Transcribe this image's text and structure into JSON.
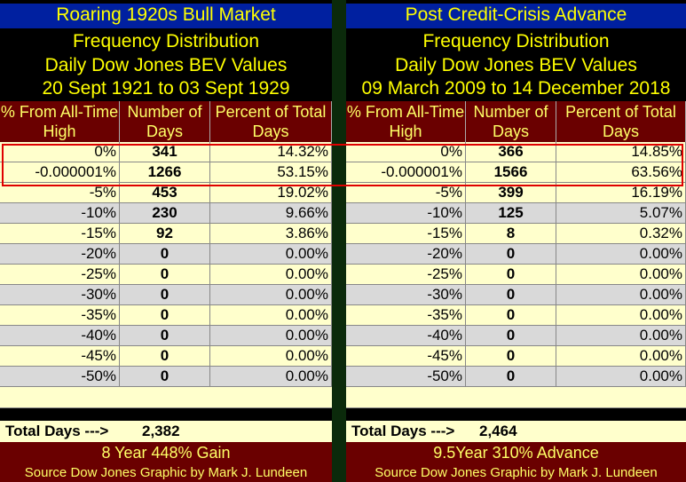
{
  "left": {
    "title": "Roaring 1920s Bull Market",
    "subtitle1": "Frequency Distribution",
    "subtitle2": "Daily Dow Jones BEV Values",
    "period": "20 Sept 1921 to 03 Sept 1929",
    "headers": [
      "% From All-Time High",
      "Number of Days",
      "Percent of Total Days"
    ],
    "rows": [
      [
        "0%",
        "341",
        "14.32%"
      ],
      [
        "-0.000001%",
        "1266",
        "53.15%"
      ],
      [
        "-5%",
        "453",
        "19.02%"
      ],
      [
        "-10%",
        "230",
        "9.66%"
      ],
      [
        "-15%",
        "92",
        "3.86%"
      ],
      [
        "-20%",
        "0",
        "0.00%"
      ],
      [
        "-25%",
        "0",
        "0.00%"
      ],
      [
        "-30%",
        "0",
        "0.00%"
      ],
      [
        "-35%",
        "0",
        "0.00%"
      ],
      [
        "-40%",
        "0",
        "0.00%"
      ],
      [
        "-45%",
        "0",
        "0.00%"
      ],
      [
        "-50%",
        "0",
        "0.00%"
      ]
    ],
    "total_label": "Total Days --->",
    "total_value": "2,382",
    "gain": "8 Year 448% Gain",
    "source": "Source Dow Jones   Graphic by Mark J. Lundeen"
  },
  "right": {
    "title": "Post Credit-Crisis Advance",
    "subtitle1": "Frequency Distribution",
    "subtitle2": "Daily Dow Jones BEV Values",
    "period": "09 March 2009 to 14 December 2018",
    "headers": [
      "% From All-Time High",
      "Number of Days",
      "Percent of Total Days"
    ],
    "rows": [
      [
        "0%",
        "366",
        "14.85%"
      ],
      [
        "-0.000001%",
        "1566",
        "63.56%"
      ],
      [
        "-5%",
        "399",
        "16.19%"
      ],
      [
        "-10%",
        "125",
        "5.07%"
      ],
      [
        "-15%",
        "8",
        "0.32%"
      ],
      [
        "-20%",
        "0",
        "0.00%"
      ],
      [
        "-25%",
        "0",
        "0.00%"
      ],
      [
        "-30%",
        "0",
        "0.00%"
      ],
      [
        "-35%",
        "0",
        "0.00%"
      ],
      [
        "-40%",
        "0",
        "0.00%"
      ],
      [
        "-45%",
        "0",
        "0.00%"
      ],
      [
        "-50%",
        "0",
        "0.00%"
      ]
    ],
    "total_label": "Total Days --->",
    "total_value": "2,464",
    "gain": "9.5Year 310% Advance",
    "source": "Source Dow Jones   Graphic by Mark J. Lundeen"
  },
  "colors": {
    "title_bg": "#0020a0",
    "title_text": "#ffff00",
    "header_bg": "#6a0000",
    "row_light": "#ffffcc",
    "row_gray": "#d9d9d9",
    "highlight_border": "#e00000",
    "divider": "#0b2a0b"
  }
}
